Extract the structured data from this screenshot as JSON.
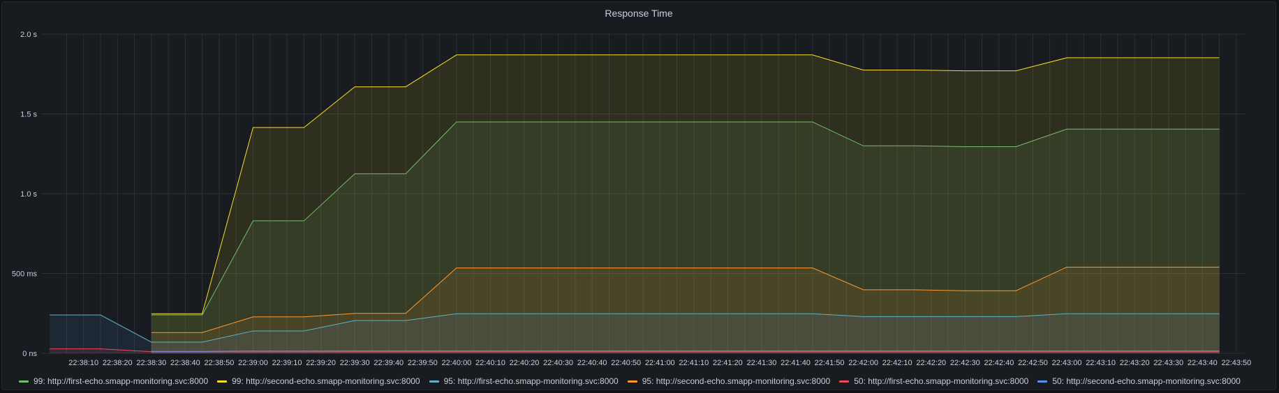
{
  "panel": {
    "title": "Response Time"
  },
  "colors": {
    "background": "#111217",
    "panel": "#181b1f",
    "grid": "#2c2f35"
  },
  "chart_data": {
    "type": "area",
    "title": "Response Time",
    "xlabel": "",
    "ylabel": "",
    "y_unit": "ms",
    "ylim": [
      0,
      2000
    ],
    "y_ticks": [
      {
        "value": 0,
        "label": "0 ns"
      },
      {
        "value": 500,
        "label": "500 ms"
      },
      {
        "value": 1000,
        "label": "1.0 s"
      },
      {
        "value": 1500,
        "label": "1.5 s"
      },
      {
        "value": 2000,
        "label": "2.0 s"
      }
    ],
    "x_ticks": [
      "22:38:10",
      "22:38:20",
      "22:38:30",
      "22:38:40",
      "22:38:50",
      "22:39:00",
      "22:39:10",
      "22:39:20",
      "22:39:30",
      "22:39:40",
      "22:39:50",
      "22:40:00",
      "22:40:10",
      "22:40:20",
      "22:40:30",
      "22:40:40",
      "22:40:50",
      "22:41:00",
      "22:41:10",
      "22:41:20",
      "22:41:30",
      "22:41:40",
      "22:41:50",
      "22:42:00",
      "22:42:10",
      "22:42:20",
      "22:42:30",
      "22:42:40",
      "22:42:50",
      "22:43:00",
      "22:43:10",
      "22:43:20",
      "22:43:30",
      "22:43:40",
      "22:43:50"
    ],
    "grid": true,
    "legend_position": "bottom",
    "x": [
      "22:38:00",
      "22:38:15",
      "22:38:30",
      "22:38:45",
      "22:39:00",
      "22:39:15",
      "22:39:30",
      "22:39:45",
      "22:40:00",
      "22:40:15",
      "22:40:30",
      "22:40:45",
      "22:41:00",
      "22:41:15",
      "22:41:30",
      "22:41:45",
      "22:42:00",
      "22:42:15",
      "22:42:30",
      "22:42:45",
      "22:43:00",
      "22:43:15",
      "22:43:30",
      "22:43:45"
    ],
    "series": [
      {
        "name": "99: http://first-echo.smapp-monitoring.svc:8000",
        "color": "#73bf69",
        "values": [
          null,
          null,
          240,
          240,
          830,
          830,
          1125,
          1125,
          1450,
          1450,
          1450,
          1450,
          1450,
          1450,
          1450,
          1450,
          1300,
          1300,
          1295,
          1295,
          1405,
          1405,
          1405,
          1405
        ]
      },
      {
        "name": "99: http://second-echo.smapp-monitoring.svc:8000",
        "color": "#fade2a",
        "values": [
          null,
          null,
          248,
          248,
          1415,
          1415,
          1670,
          1670,
          1870,
          1870,
          1870,
          1870,
          1870,
          1870,
          1870,
          1870,
          1775,
          1775,
          1770,
          1770,
          1852,
          1852,
          1852,
          1852
        ]
      },
      {
        "name": "95: http://first-echo.smapp-monitoring.svc:8000",
        "color": "#5794f2",
        "values": [
          240,
          240,
          70,
          70,
          140,
          140,
          205,
          205,
          248,
          248,
          248,
          248,
          248,
          248,
          248,
          248,
          230,
          230,
          230,
          230,
          248,
          248,
          248,
          248
        ]
      },
      {
        "name": "95: http://second-echo.smapp-monitoring.svc:8000",
        "color": "#ff9830",
        "values": [
          null,
          null,
          130,
          130,
          228,
          228,
          250,
          250,
          535,
          535,
          535,
          535,
          535,
          535,
          535,
          535,
          398,
          398,
          392,
          392,
          540,
          540,
          540,
          540
        ]
      },
      {
        "name": "50: http://first-echo.smapp-monitoring.svc:8000",
        "color": "#f2495c",
        "values": [
          28,
          28,
          10,
          10,
          12,
          12,
          12,
          12,
          12,
          12,
          12,
          12,
          12,
          12,
          12,
          12,
          12,
          12,
          12,
          12,
          12,
          12,
          12,
          12
        ]
      },
      {
        "name": "50: http://second-echo.smapp-monitoring.svc:8000",
        "color": "#5794f2",
        "values": [
          null,
          null,
          12,
          12,
          14,
          14,
          15,
          15,
          15,
          15,
          15,
          15,
          15,
          15,
          15,
          15,
          15,
          15,
          15,
          15,
          15,
          15,
          15,
          15
        ]
      }
    ]
  }
}
